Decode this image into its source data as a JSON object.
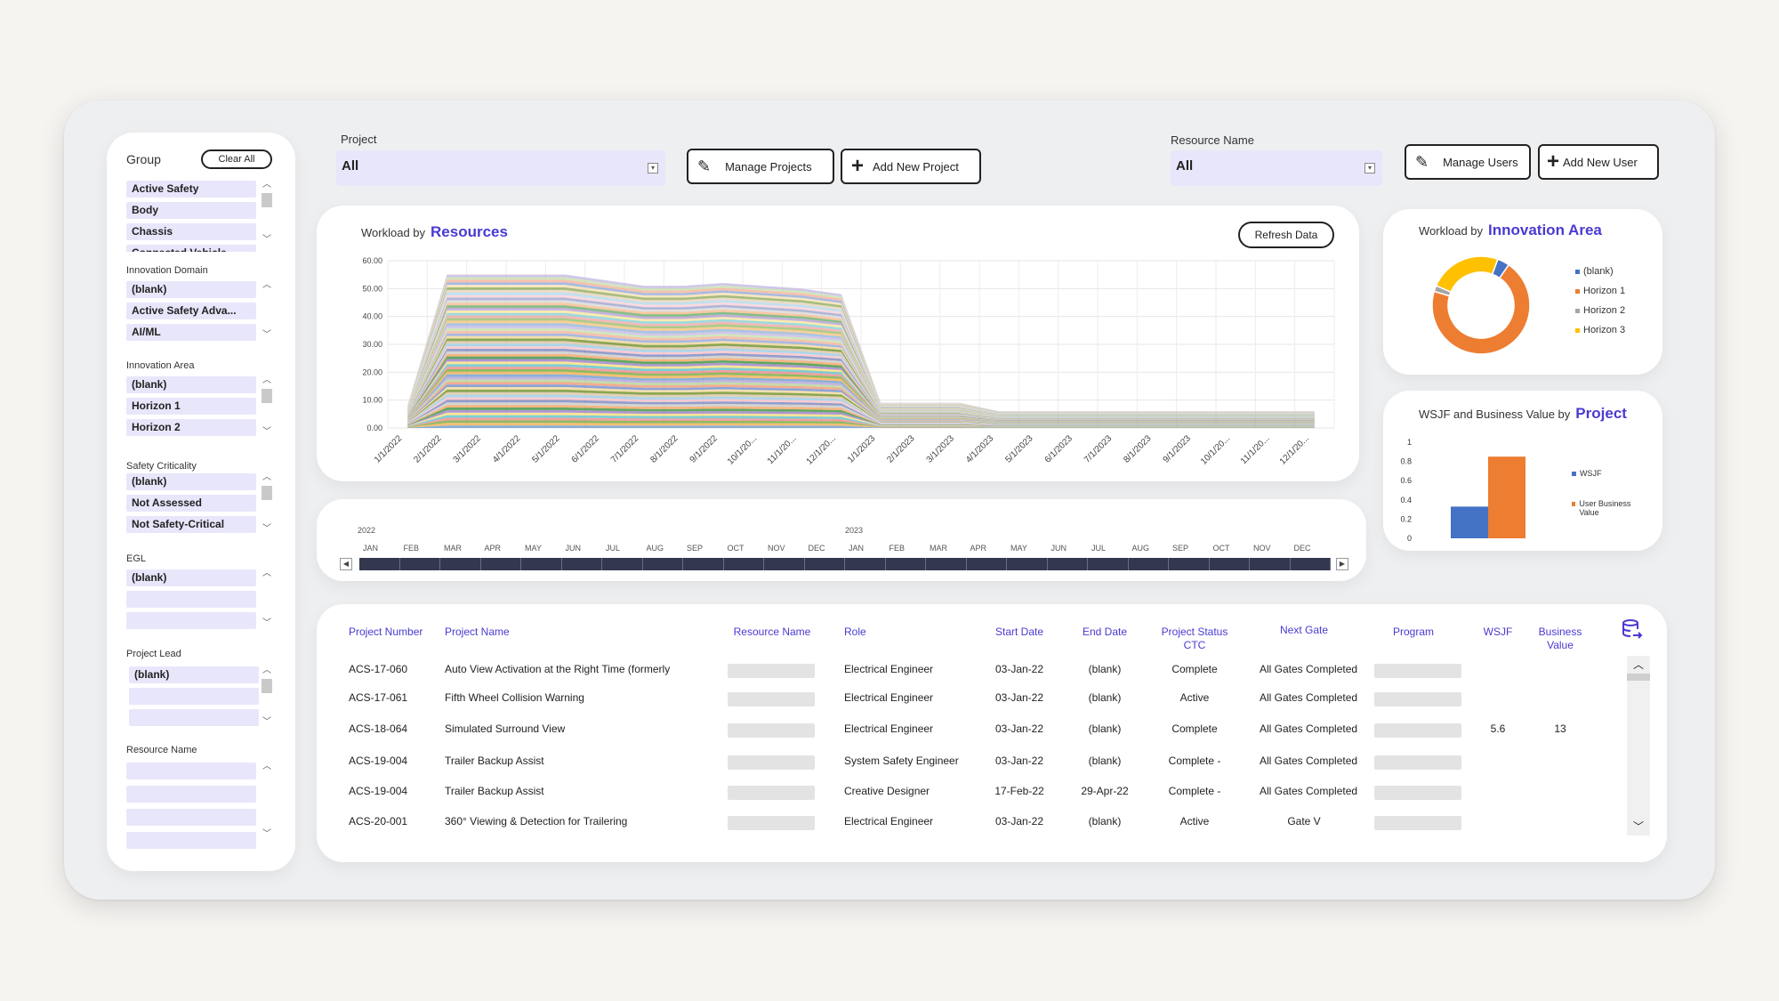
{
  "filters": {
    "project_label": "Project",
    "project_value": "All",
    "resource_label": "Resource Name",
    "resource_value": "All"
  },
  "buttons": {
    "manage_projects": "Manage Projects",
    "add_project": "Add New Project",
    "manage_users": "Manage Users",
    "add_user": "Add New User",
    "clear_all": "Clear All",
    "refresh": "Refresh Data"
  },
  "slicers": [
    {
      "title": "Group",
      "items": [
        "Active Safety",
        "Body",
        "Chassis",
        "Connected Vehicle"
      ]
    },
    {
      "title": "Innovation Domain",
      "items": [
        "(blank)",
        "Active Safety Adva...",
        "AI/ML"
      ]
    },
    {
      "title": "Innovation Area",
      "items": [
        "(blank)",
        "Horizon 1",
        "Horizon 2"
      ]
    },
    {
      "title": "Safety Criticality",
      "items": [
        "(blank)",
        "Not Assessed",
        "Not Safety-Critical"
      ]
    },
    {
      "title": "EGL",
      "items": [
        "(blank)",
        "",
        ""
      ]
    },
    {
      "title": "Project Lead",
      "items": [
        "(blank)",
        "",
        ""
      ]
    },
    {
      "title": "Resource Name",
      "items": [
        "",
        "",
        "",
        ""
      ]
    }
  ],
  "workload_chart": {
    "prefix": "Workload by",
    "title": "Resources",
    "chart_data": {
      "type": "area",
      "x": [
        "1/1/2022",
        "2/1/2022",
        "3/1/2022",
        "4/1/2022",
        "5/1/2022",
        "6/1/2022",
        "7/1/2022",
        "8/1/2022",
        "9/1/2022",
        "10/1/20...",
        "11/1/20...",
        "12/1/20...",
        "1/1/2023",
        "2/1/2023",
        "3/1/2023",
        "4/1/2023",
        "5/1/2023",
        "6/1/2023",
        "7/1/2023",
        "8/1/2023",
        "9/1/2023",
        "10/1/20...",
        "11/1/20...",
        "12/1/20..."
      ],
      "total": [
        8,
        55,
        55,
        55,
        55,
        53,
        51,
        51,
        52,
        51,
        50,
        48,
        9,
        9,
        9,
        6,
        6,
        6,
        6,
        6,
        6,
        6,
        6,
        6
      ],
      "ylim": [
        0,
        60
      ],
      "yticks": [
        "0.00",
        "10.00",
        "20.00",
        "30.00",
        "40.00",
        "50.00",
        "60.00"
      ],
      "band_colors": [
        "#2e6fb8",
        "#f2a33a",
        "#7fb04b",
        "#e96a6a",
        "#5bc0c7",
        "#f4d03f",
        "#8e6cc0",
        "#4a9a4a",
        "#ee8c3a",
        "#c8c8c8",
        "#3d4fa0",
        "#f7b7c1",
        "#9fd0e8",
        "#d2b48c",
        "#6b8e23",
        "#e8c56a",
        "#5d7ec9",
        "#f0a080",
        "#a0c878",
        "#b0a0d8"
      ]
    }
  },
  "innovation_chart": {
    "prefix": "Workload by",
    "title": "Innovation Area",
    "chart_data": {
      "type": "pie",
      "labels": [
        "(blank)",
        "Horizon 1",
        "Horizon 2",
        "Horizon 3"
      ],
      "values": [
        4,
        70,
        2,
        24
      ],
      "colors": [
        "#4472c4",
        "#ed7d31",
        "#a5a5a5",
        "#ffc000"
      ]
    }
  },
  "wsjf_chart": {
    "prefix": "WSJF and Business Value by",
    "title": "Project",
    "chart_data": {
      "type": "bar",
      "series": [
        {
          "name": "WSJF",
          "values": [
            0.33
          ],
          "color": "#4472c4"
        },
        {
          "name": "User Business Value",
          "values": [
            0.85
          ],
          "color": "#ed7d31"
        }
      ],
      "ylim": [
        0,
        1
      ],
      "yticks": [
        "0",
        "0.2",
        "0.4",
        "0.6",
        "0.8",
        "1"
      ]
    }
  },
  "timeline": {
    "years": [
      "2022",
      "2023"
    ],
    "months": [
      "JAN",
      "FEB",
      "MAR",
      "APR",
      "MAY",
      "JUN",
      "JUL",
      "AUG",
      "SEP",
      "OCT",
      "NOV",
      "DEC",
      "JAN",
      "FEB",
      "MAR",
      "APR",
      "MAY",
      "JUN",
      "JUL",
      "AUG",
      "SEP",
      "OCT",
      "NOV",
      "DEC"
    ]
  },
  "table": {
    "headers": {
      "number": "Project Number",
      "name": "Project Name",
      "resource": "Resource Name",
      "role": "Role",
      "start": "Start Date",
      "end": "End Date",
      "status": "Project Status CTC",
      "gate": "Next Gate",
      "program": "Program",
      "wsjf": "WSJF",
      "value": "Business Value"
    },
    "rows": [
      {
        "number": "ACS-17-060",
        "name": "Auto View Activation at the Right Time (formerly",
        "role": "Electrical Engineer",
        "start": "03-Jan-22",
        "end": "(blank)",
        "status": "Complete",
        "gate": "All Gates Completed",
        "wsjf": "",
        "value": ""
      },
      {
        "number": "ACS-17-061",
        "name": "Fifth Wheel Collision Warning",
        "role": "Electrical Engineer",
        "start": "03-Jan-22",
        "end": "(blank)",
        "status": "Active",
        "gate": "All Gates Completed",
        "wsjf": "",
        "value": ""
      },
      {
        "number": "ACS-18-064",
        "name": "Simulated Surround View",
        "role": "Electrical Engineer",
        "start": "03-Jan-22",
        "end": "(blank)",
        "status": "Complete",
        "gate": "All Gates Completed",
        "wsjf": "5.6",
        "value": "13"
      },
      {
        "number": "ACS-19-004",
        "name": "Trailer Backup Assist",
        "role": "System Safety Engineer",
        "start": "03-Jan-22",
        "end": "(blank)",
        "status": "Complete -",
        "gate": "All Gates Completed",
        "wsjf": "",
        "value": ""
      },
      {
        "number": "ACS-19-004",
        "name": "Trailer Backup Assist",
        "role": "Creative Designer",
        "start": "17-Feb-22",
        "end": "29-Apr-22",
        "status": "Complete -",
        "gate": "All Gates Completed",
        "wsjf": "",
        "value": ""
      },
      {
        "number": "ACS-20-001",
        "name": "360° Viewing & Detection for Trailering",
        "role": "Electrical Engineer",
        "start": "03-Jan-22",
        "end": "(blank)",
        "status": "Active",
        "gate": "Gate V",
        "wsjf": "",
        "value": ""
      }
    ]
  }
}
